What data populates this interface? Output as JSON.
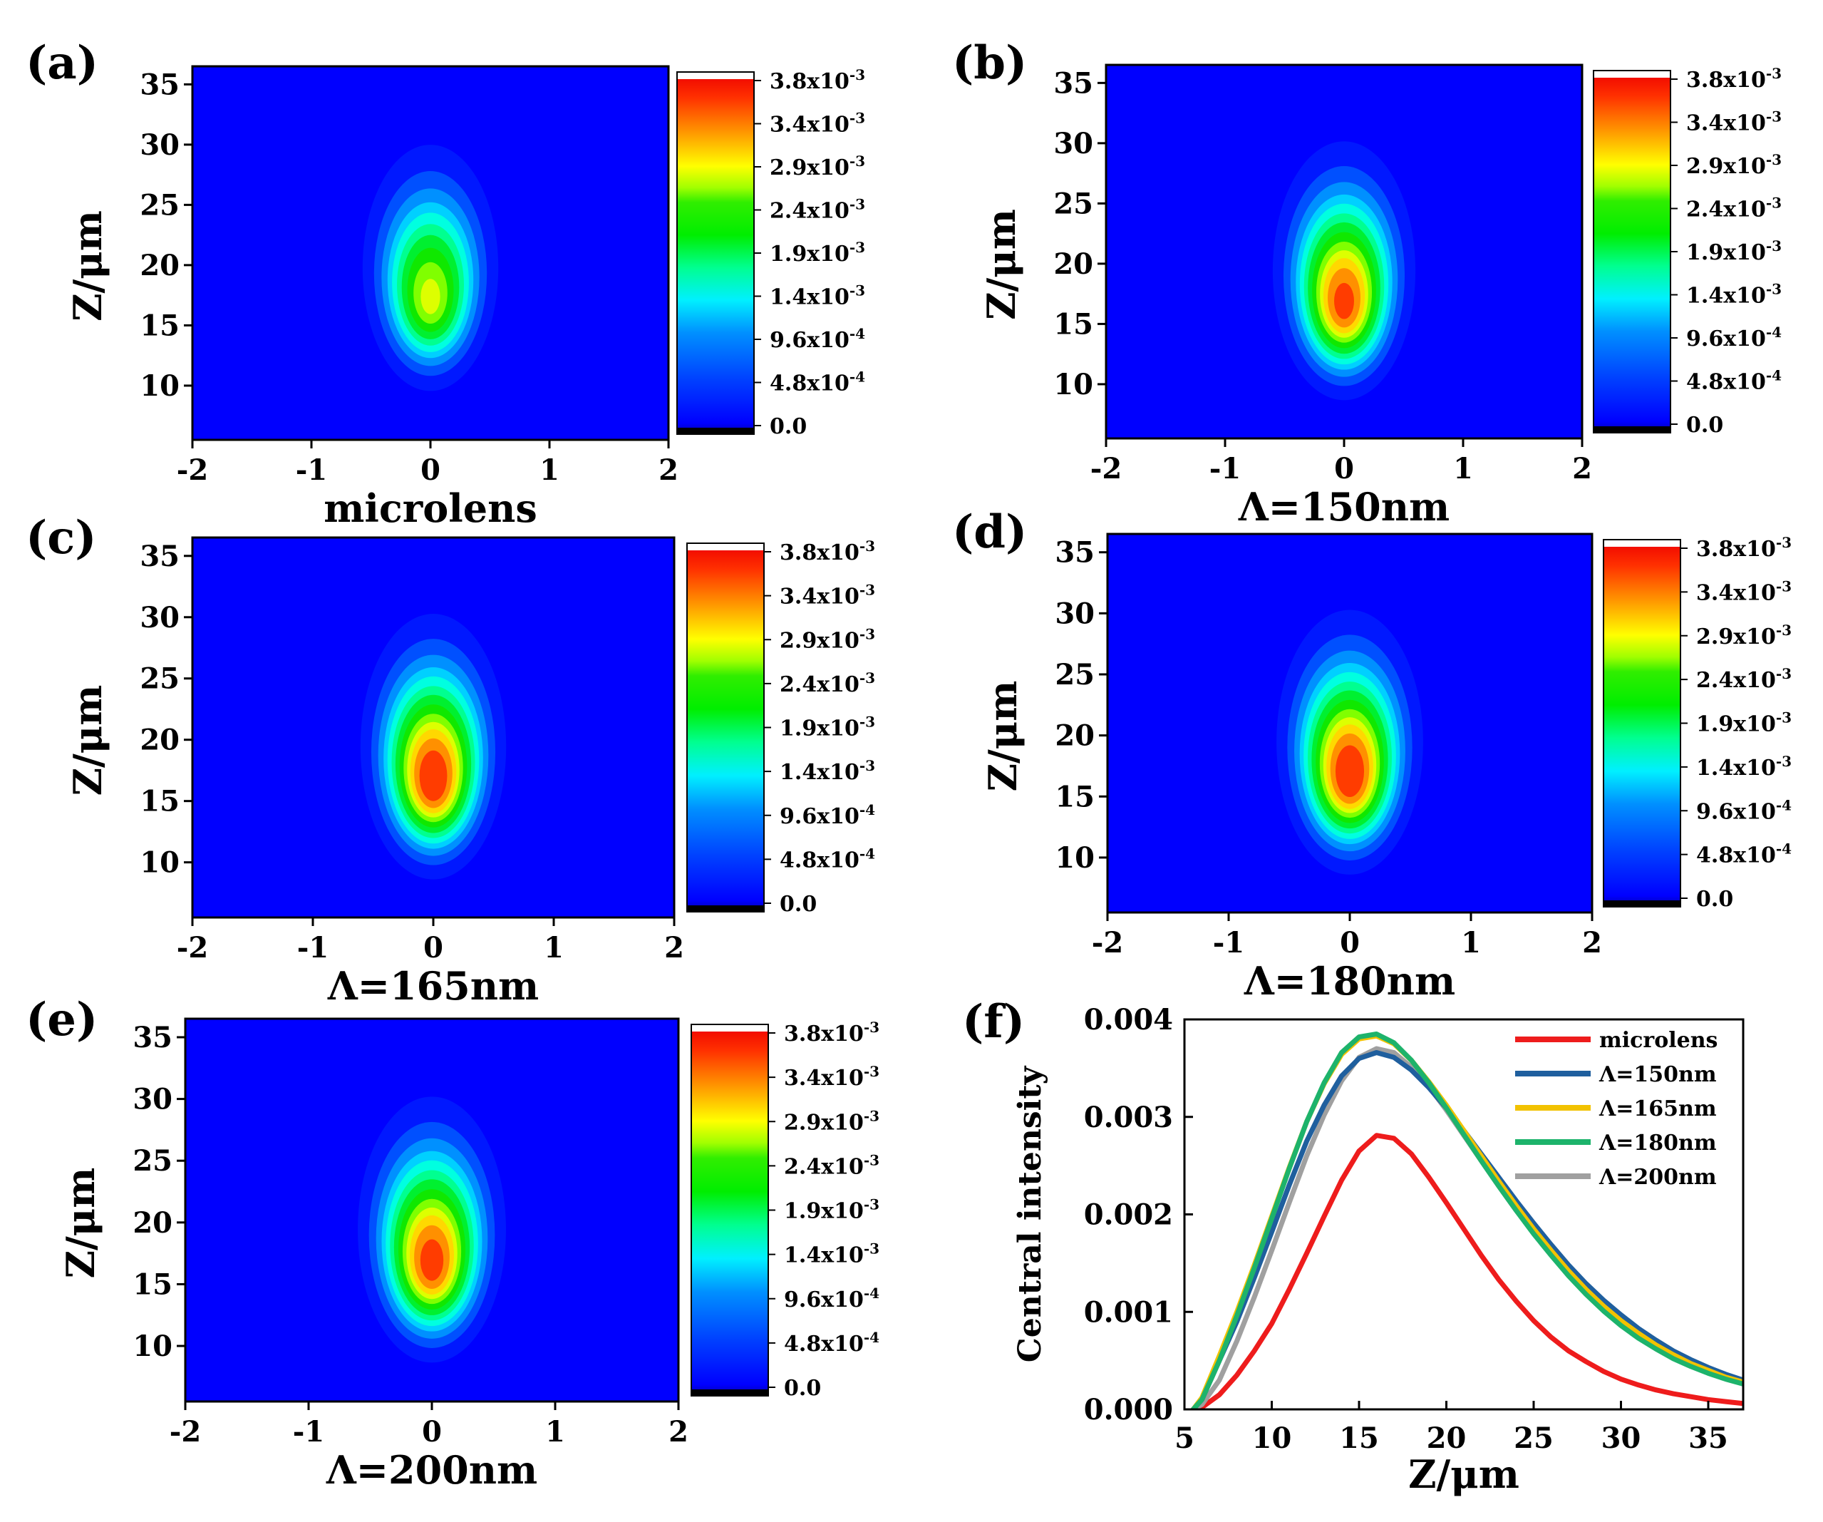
{
  "chart_data": [
    {
      "type": "heatmap",
      "panel_label": "(a)",
      "title": "microlens",
      "xlabel": "microlens",
      "ylabel": "Z/μm",
      "xlim": [
        -2,
        2
      ],
      "ylim": [
        5.5,
        36.5
      ],
      "x_ticks": [
        "-2",
        "-1",
        "0",
        "1",
        "2"
      ],
      "y_ticks": [
        "10",
        "15",
        "20",
        "25",
        "30",
        "35"
      ],
      "peak_x": 0,
      "peak_z": 17,
      "peak_intensity": 0.0028,
      "color_range": [
        0,
        0.0038
      ],
      "colorbar_ticks": [
        {
          "m": "3.8x10",
          "e": "-3"
        },
        {
          "m": "3.4x10",
          "e": "-3"
        },
        {
          "m": "2.9x10",
          "e": "-3"
        },
        {
          "m": "2.4x10",
          "e": "-3"
        },
        {
          "m": "1.9x10",
          "e": "-3"
        },
        {
          "m": "1.4x10",
          "e": "-3"
        },
        {
          "m": "9.6x10",
          "e": "-4"
        },
        {
          "m": "4.8x10",
          "e": "-4"
        },
        {
          "m": "0.0",
          "e": ""
        }
      ]
    },
    {
      "type": "heatmap",
      "panel_label": "(b)",
      "title": "Λ=150nm",
      "xlabel": "Λ=150nm",
      "ylabel": "Z/μm",
      "xlim": [
        -2,
        2
      ],
      "ylim": [
        5.5,
        36.5
      ],
      "x_ticks": [
        "-2",
        "-1",
        "0",
        "1",
        "2"
      ],
      "y_ticks": [
        "10",
        "15",
        "20",
        "25",
        "30",
        "35"
      ],
      "peak_x": 0,
      "peak_z": 16.5,
      "peak_intensity": 0.00365,
      "color_range": [
        0,
        0.0038
      ],
      "colorbar_ticks": [
        {
          "m": "3.8x10",
          "e": "-3"
        },
        {
          "m": "3.4x10",
          "e": "-3"
        },
        {
          "m": "2.9x10",
          "e": "-3"
        },
        {
          "m": "2.4x10",
          "e": "-3"
        },
        {
          "m": "1.9x10",
          "e": "-3"
        },
        {
          "m": "1.4x10",
          "e": "-3"
        },
        {
          "m": "9.6x10",
          "e": "-4"
        },
        {
          "m": "4.8x10",
          "e": "-4"
        },
        {
          "m": "0.0",
          "e": ""
        }
      ]
    },
    {
      "type": "heatmap",
      "panel_label": "(c)",
      "title": "Λ=165nm",
      "xlabel": "Λ=165nm",
      "ylabel": "Z/μm",
      "xlim": [
        -2,
        2
      ],
      "ylim": [
        5.5,
        36.5
      ],
      "x_ticks": [
        "-2",
        "-1",
        "0",
        "1",
        "2"
      ],
      "y_ticks": [
        "10",
        "15",
        "20",
        "25",
        "30",
        "35"
      ],
      "peak_x": 0,
      "peak_z": 16.5,
      "peak_intensity": 0.00383,
      "color_range": [
        0,
        0.0038
      ],
      "colorbar_ticks": [
        {
          "m": "3.8x10",
          "e": "-3"
        },
        {
          "m": "3.4x10",
          "e": "-3"
        },
        {
          "m": "2.9x10",
          "e": "-3"
        },
        {
          "m": "2.4x10",
          "e": "-3"
        },
        {
          "m": "1.9x10",
          "e": "-3"
        },
        {
          "m": "1.4x10",
          "e": "-3"
        },
        {
          "m": "9.6x10",
          "e": "-4"
        },
        {
          "m": "4.8x10",
          "e": "-4"
        },
        {
          "m": "0.0",
          "e": ""
        }
      ]
    },
    {
      "type": "heatmap",
      "panel_label": "(d)",
      "title": "Λ=180nm",
      "xlabel": "Λ=180nm",
      "ylabel": "Z/μm",
      "xlim": [
        -2,
        2
      ],
      "ylim": [
        5.5,
        36.5
      ],
      "x_ticks": [
        "-2",
        "-1",
        "0",
        "1",
        "2"
      ],
      "y_ticks": [
        "10",
        "15",
        "20",
        "25",
        "30",
        "35"
      ],
      "peak_x": 0,
      "peak_z": 16.5,
      "peak_intensity": 0.00385,
      "color_range": [
        0,
        0.0038
      ],
      "colorbar_ticks": [
        {
          "m": "3.8x10",
          "e": "-3"
        },
        {
          "m": "3.4x10",
          "e": "-3"
        },
        {
          "m": "2.9x10",
          "e": "-3"
        },
        {
          "m": "2.4x10",
          "e": "-3"
        },
        {
          "m": "1.9x10",
          "e": "-3"
        },
        {
          "m": "1.4x10",
          "e": "-3"
        },
        {
          "m": "9.6x10",
          "e": "-4"
        },
        {
          "m": "4.8x10",
          "e": "-4"
        },
        {
          "m": "0.0",
          "e": ""
        }
      ]
    },
    {
      "type": "heatmap",
      "panel_label": "(e)",
      "title": "Λ=200nm",
      "xlabel": "Λ=200nm",
      "ylabel": "Z/μm",
      "xlim": [
        -2,
        2
      ],
      "ylim": [
        5.5,
        36.5
      ],
      "x_ticks": [
        "-2",
        "-1",
        "0",
        "1",
        "2"
      ],
      "y_ticks": [
        "10",
        "15",
        "20",
        "25",
        "30",
        "35"
      ],
      "peak_x": 0,
      "peak_z": 16.5,
      "peak_intensity": 0.0037,
      "color_range": [
        0,
        0.0038
      ],
      "colorbar_ticks": [
        {
          "m": "3.8x10",
          "e": "-3"
        },
        {
          "m": "3.4x10",
          "e": "-3"
        },
        {
          "m": "2.9x10",
          "e": "-3"
        },
        {
          "m": "2.4x10",
          "e": "-3"
        },
        {
          "m": "1.9x10",
          "e": "-3"
        },
        {
          "m": "1.4x10",
          "e": "-3"
        },
        {
          "m": "9.6x10",
          "e": "-4"
        },
        {
          "m": "4.8x10",
          "e": "-4"
        },
        {
          "m": "0.0",
          "e": ""
        }
      ]
    },
    {
      "type": "line",
      "panel_label": "(f)",
      "xlabel": "Z/μm",
      "ylabel": "Central intensity",
      "xlim": [
        5,
        37
      ],
      "ylim": [
        0,
        0.004
      ],
      "x_ticks": [
        "5",
        "10",
        "15",
        "20",
        "25",
        "30",
        "35"
      ],
      "y_ticks": [
        "0.000",
        "0.001",
        "0.002",
        "0.003",
        "0.004"
      ],
      "legend_position": "top-right",
      "x": [
        5.5,
        6,
        7,
        8,
        9,
        10,
        11,
        12,
        13,
        14,
        15,
        16,
        17,
        18,
        19,
        20,
        21,
        22,
        23,
        24,
        25,
        26,
        27,
        28,
        29,
        30,
        31,
        32,
        33,
        34,
        35,
        36,
        37
      ],
      "series": [
        {
          "name": "microlens",
          "color": "#ee1c1c",
          "values": [
            0,
            2e-05,
            0.00015,
            0.00035,
            0.0006,
            0.00088,
            0.00123,
            0.0016,
            0.00198,
            0.00235,
            0.00265,
            0.00281,
            0.00278,
            0.00262,
            0.00238,
            0.00212,
            0.00185,
            0.00158,
            0.00133,
            0.00111,
            0.00091,
            0.00074,
            0.0006,
            0.00049,
            0.00039,
            0.00031,
            0.00025,
            0.0002,
            0.00016,
            0.00013,
            0.0001,
            8e-05,
            6e-05
          ]
        },
        {
          "name": "Λ=150nm",
          "color": "#1f5f9e",
          "values": [
            0,
            0.0001,
            0.0005,
            0.0009,
            0.00135,
            0.00182,
            0.0023,
            0.00275,
            0.00312,
            0.00342,
            0.0036,
            0.00366,
            0.00361,
            0.00348,
            0.0033,
            0.00309,
            0.00286,
            0.00262,
            0.00238,
            0.00214,
            0.00191,
            0.00169,
            0.00148,
            0.00129,
            0.00112,
            0.00097,
            0.00083,
            0.00071,
            0.0006,
            0.00051,
            0.00043,
            0.00036,
            0.0003
          ]
        },
        {
          "name": "Λ=165nm",
          "color": "#f2c200",
          "values": [
            0,
            0.00012,
            0.00055,
            0.001,
            0.00148,
            0.00198,
            0.00248,
            0.00295,
            0.00334,
            0.00364,
            0.0038,
            0.00383,
            0.00375,
            0.00358,
            0.00336,
            0.00312,
            0.00286,
            0.0026,
            0.00234,
            0.00209,
            0.00185,
            0.00163,
            0.00142,
            0.00123,
            0.00106,
            0.00091,
            0.00078,
            0.00066,
            0.00056,
            0.00047,
            0.0004,
            0.00033,
            0.00028
          ]
        },
        {
          "name": "Λ=180nm",
          "color": "#1db36b",
          "values": [
            0,
            0.0001,
            0.0005,
            0.00096,
            0.00145,
            0.00196,
            0.00247,
            0.00295,
            0.00335,
            0.00366,
            0.00382,
            0.00385,
            0.00376,
            0.00358,
            0.00335,
            0.00309,
            0.00282,
            0.00255,
            0.00229,
            0.00204,
            0.0018,
            0.00158,
            0.00137,
            0.00118,
            0.00101,
            0.00086,
            0.00073,
            0.00062,
            0.00052,
            0.00044,
            0.00037,
            0.00031,
            0.00026
          ]
        },
        {
          "name": "Λ=200nm",
          "color": "#a0a0a0",
          "values": [
            0,
            5e-05,
            0.0003,
            0.0007,
            0.00115,
            0.00163,
            0.00212,
            0.0026,
            0.00302,
            0.00337,
            0.00361,
            0.0037,
            0.00366,
            0.00351,
            0.00331,
            0.00307,
            0.00281,
            0.00255,
            0.00229,
            0.00204,
            0.00181,
            0.00159,
            0.00138,
            0.0012,
            0.00103,
            0.00088,
            0.00075,
            0.00064,
            0.00054,
            0.00045,
            0.00038,
            0.00032,
            0.00027
          ]
        }
      ]
    }
  ]
}
